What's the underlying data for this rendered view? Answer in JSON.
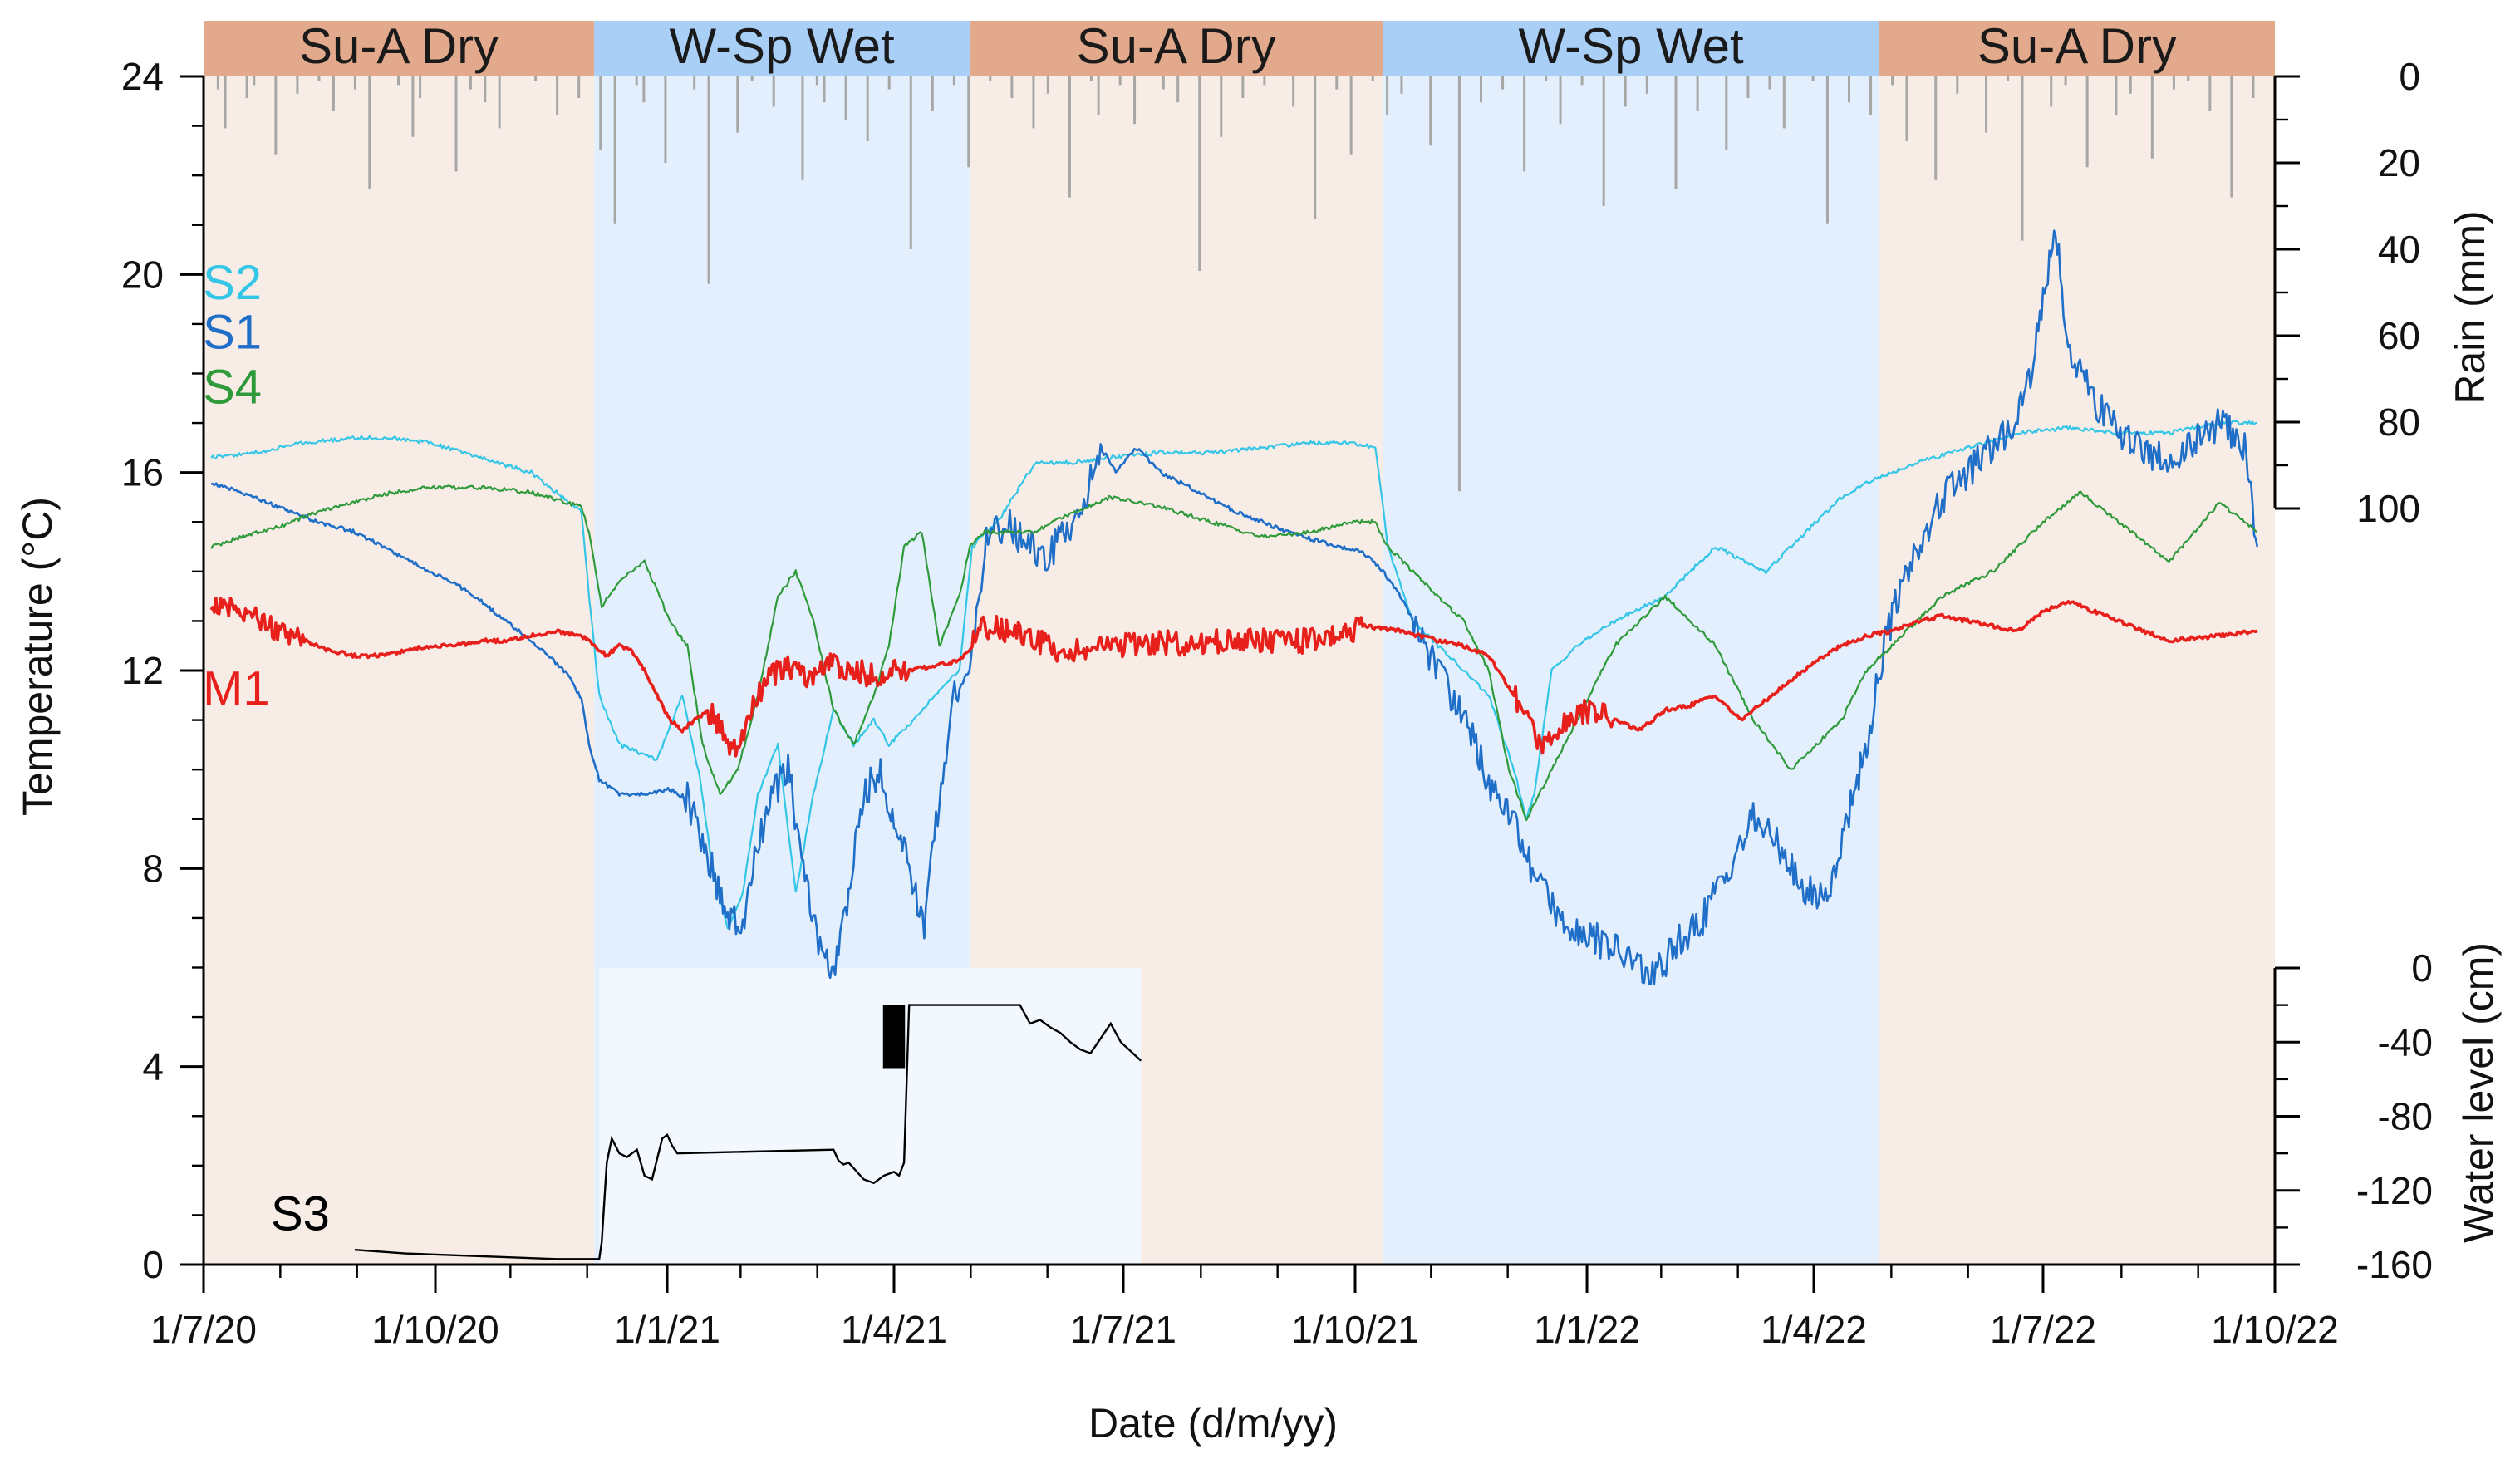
{
  "chart_data": {
    "type": "line",
    "xlabel": "Date (d/m/yy)",
    "ylabel": "Temperature (°C)",
    "ylim": [
      0,
      24
    ],
    "yticks": [
      0,
      4,
      8,
      12,
      16,
      20,
      24
    ],
    "x_range": [
      "1/7/20",
      "1/10/22"
    ],
    "x_ticks": [
      "1/7/20",
      "1/10/20",
      "1/1/21",
      "1/4/21",
      "1/7/21",
      "1/10/21",
      "1/1/22",
      "1/4/22",
      "1/7/22",
      "1/10/22"
    ],
    "x_tick_days": [
      0,
      92,
      184,
      274,
      365,
      457,
      549,
      639,
      730,
      822
    ],
    "rain_axis": {
      "label": "Rain (mm)",
      "ticks": [
        0,
        20,
        40,
        60,
        80,
        100
      ],
      "range": [
        0,
        100
      ]
    },
    "water_axis": {
      "label": "Water level (cm)",
      "ticks": [
        0,
        -40,
        -80,
        -120,
        -160
      ],
      "range": [
        -160,
        0
      ]
    },
    "seasons": [
      {
        "label": "Su-A Dry",
        "start": 0,
        "end": 155,
        "kind": "dry"
      },
      {
        "label": "W-Sp Wet",
        "start": 155,
        "end": 304,
        "kind": "wet"
      },
      {
        "label": "Su-A Dry",
        "start": 304,
        "end": 468,
        "kind": "dry"
      },
      {
        "label": "W-Sp Wet",
        "start": 468,
        "end": 665,
        "kind": "wet"
      },
      {
        "label": "Su-A Dry",
        "start": 665,
        "end": 822,
        "kind": "dry"
      }
    ],
    "series": [
      {
        "name": "S2",
        "color": "#33c6e6",
        "width": 2.2,
        "x": [
          3,
          20,
          40,
          60,
          75,
          90,
          110,
          130,
          150,
          153,
          157,
          165,
          180,
          190,
          197,
          202,
          208,
          214,
          220,
          228,
          235,
          242,
          250,
          258,
          266,
          272,
          278,
          285,
          292,
          300,
          305,
          315,
          330,
          345,
          360,
          380,
          400,
          420,
          440,
          455,
          465,
          470,
          480,
          490,
          500,
          510,
          520,
          525,
          528,
          535,
          545,
          560,
          580,
          600,
          620,
          630,
          640,
          650,
          660,
          680,
          700,
          720,
          740,
          760,
          780,
          800,
          815
        ],
        "y": [
          16.3,
          16.4,
          16.6,
          16.7,
          16.7,
          16.6,
          16.3,
          16.0,
          15.2,
          13.5,
          11.5,
          10.5,
          10.2,
          11.5,
          9.8,
          8.0,
          6.8,
          7.5,
          9.5,
          10.5,
          7.5,
          9.5,
          11.2,
          10.5,
          11.0,
          10.5,
          10.8,
          11.2,
          11.6,
          12.0,
          14.5,
          15.0,
          16.2,
          16.2,
          16.3,
          16.4,
          16.4,
          16.5,
          16.6,
          16.6,
          16.5,
          14.5,
          13.0,
          12.5,
          12.0,
          11.5,
          10.0,
          9.0,
          9.5,
          12.0,
          12.5,
          13.0,
          13.5,
          14.5,
          14.0,
          14.5,
          15.0,
          15.5,
          15.8,
          16.2,
          16.5,
          16.8,
          16.9,
          16.8,
          16.8,
          17.0,
          17.0
        ]
      },
      {
        "name": "S1",
        "color": "#1f6ec8",
        "width": 2.6,
        "x": [
          3,
          15,
          30,
          45,
          60,
          75,
          90,
          105,
          120,
          135,
          145,
          150,
          153,
          157,
          165,
          175,
          185,
          192,
          198,
          203,
          208,
          214,
          220,
          226,
          232,
          238,
          244,
          250,
          256,
          262,
          268,
          274,
          280,
          286,
          292,
          298,
          304,
          310,
          318,
          326,
          334,
          342,
          350,
          356,
          362,
          370,
          380,
          395,
          410,
          430,
          450,
          460,
          468,
          475,
          485,
          495,
          505,
          512,
          520,
          528,
          536,
          545,
          555,
          565,
          575,
          585,
          595,
          605,
          615,
          625,
          635,
          645,
          655,
          660,
          665,
          672,
          680,
          690,
          700,
          710,
          718,
          725,
          730,
          735,
          740,
          750,
          760,
          770,
          780,
          790,
          800,
          810,
          815
        ],
        "y": [
          15.8,
          15.6,
          15.3,
          15.0,
          14.8,
          14.4,
          14.0,
          13.6,
          13.0,
          12.4,
          11.9,
          11.4,
          10.5,
          9.8,
          9.5,
          9.5,
          9.6,
          9.4,
          8.6,
          7.8,
          7.0,
          6.8,
          8.5,
          9.5,
          10.0,
          8.0,
          6.5,
          5.8,
          7.5,
          9.5,
          10.0,
          9.0,
          8.0,
          6.8,
          9.5,
          11.5,
          12.0,
          14.5,
          15.0,
          14.6,
          14.2,
          14.8,
          15.5,
          16.5,
          16.0,
          16.5,
          16.0,
          15.6,
          15.2,
          14.8,
          14.5,
          14.4,
          14.0,
          13.5,
          12.5,
          11.5,
          10.5,
          9.5,
          9.0,
          7.8,
          7.2,
          6.8,
          6.5,
          6.2,
          5.8,
          6.5,
          7.0,
          8.0,
          9.0,
          8.5,
          7.5,
          7.5,
          9.5,
          10.5,
          12.0,
          13.5,
          14.5,
          15.5,
          16.0,
          16.5,
          17.0,
          18.0,
          19.5,
          21.0,
          18.5,
          17.5,
          16.8,
          16.5,
          16.2,
          16.6,
          17.0,
          16.5,
          14.5
        ]
      },
      {
        "name": "S4",
        "color": "#2e9a3a",
        "width": 2.2,
        "x": [
          3,
          15,
          30,
          45,
          60,
          75,
          90,
          110,
          130,
          150,
          153,
          158,
          165,
          175,
          185,
          192,
          198,
          205,
          212,
          220,
          228,
          235,
          242,
          250,
          258,
          266,
          272,
          278,
          285,
          292,
          300,
          304,
          310,
          320,
          330,
          345,
          360,
          380,
          400,
          420,
          440,
          455,
          465,
          470,
          480,
          490,
          500,
          510,
          518,
          525,
          535,
          545,
          560,
          580,
          600,
          615,
          630,
          640,
          650,
          660,
          670,
          690,
          710,
          730,
          745,
          760,
          780,
          800,
          815
        ],
        "y": [
          14.5,
          14.7,
          14.9,
          15.2,
          15.4,
          15.6,
          15.7,
          15.7,
          15.6,
          15.3,
          14.8,
          13.3,
          13.8,
          14.2,
          13.0,
          12.5,
          10.5,
          9.5,
          10.0,
          11.5,
          13.5,
          14.0,
          13.0,
          11.2,
          10.5,
          11.5,
          12.5,
          14.5,
          14.8,
          12.5,
          13.5,
          14.5,
          14.8,
          14.8,
          14.8,
          15.2,
          15.5,
          15.3,
          15.0,
          14.7,
          14.8,
          15.0,
          15.0,
          14.5,
          14.0,
          13.5,
          13.0,
          12.0,
          10.0,
          9.0,
          10.0,
          11.0,
          12.5,
          13.5,
          12.5,
          11.0,
          10.0,
          10.5,
          11.0,
          12.0,
          12.5,
          13.5,
          14.0,
          15.0,
          15.6,
          15.0,
          14.2,
          15.4,
          14.8
        ]
      },
      {
        "name": "M1",
        "color": "#e8201c",
        "width": 3.6,
        "x": [
          3,
          10,
          20,
          30,
          40,
          50,
          60,
          70,
          80,
          90,
          100,
          110,
          120,
          130,
          140,
          150,
          155,
          160,
          165,
          170,
          175,
          180,
          185,
          190,
          195,
          200,
          205,
          210,
          215,
          220,
          225,
          230,
          235,
          240,
          245,
          250,
          255,
          260,
          265,
          270,
          275,
          280,
          290,
          300,
          305,
          310,
          320,
          330,
          340,
          350,
          360,
          370,
          380,
          390,
          400,
          410,
          420,
          430,
          440,
          450,
          455,
          460,
          475,
          490,
          500,
          510,
          520,
          530,
          540,
          550,
          560,
          570,
          580,
          590,
          600,
          610,
          620,
          630,
          640,
          650,
          660,
          670,
          680,
          690,
          700,
          710,
          720,
          730,
          740,
          760,
          780,
          800,
          815
        ],
        "y": [
          13.4,
          13.3,
          13.1,
          12.8,
          12.6,
          12.4,
          12.3,
          12.3,
          12.4,
          12.5,
          12.5,
          12.6,
          12.6,
          12.7,
          12.8,
          12.7,
          12.5,
          12.3,
          12.5,
          12.4,
          12.0,
          11.5,
          11.0,
          10.8,
          11.0,
          11.2,
          10.9,
          10.3,
          10.8,
          11.5,
          11.9,
          12.0,
          12.1,
          11.8,
          12.0,
          12.2,
          11.9,
          12.0,
          11.9,
          11.9,
          12.0,
          12.0,
          12.1,
          12.2,
          12.5,
          12.9,
          12.8,
          12.6,
          12.4,
          12.4,
          12.5,
          12.5,
          12.6,
          12.5,
          12.6,
          12.6,
          12.6,
          12.6,
          12.6,
          12.7,
          12.8,
          12.9,
          12.8,
          12.6,
          12.5,
          12.3,
          11.5,
          10.5,
          11.0,
          11.2,
          11.0,
          10.8,
          11.2,
          11.3,
          11.5,
          11.0,
          11.4,
          11.8,
          12.2,
          12.5,
          12.7,
          12.8,
          13.0,
          13.1,
          13.0,
          12.9,
          12.8,
          13.2,
          13.4,
          13.0,
          12.6,
          12.7,
          12.8
        ]
      }
    ],
    "water_level": {
      "name": "S3",
      "color": "#000000",
      "x": [
        60,
        80,
        100,
        120,
        140,
        150,
        157,
        158,
        160,
        162,
        165,
        168,
        172,
        175,
        178,
        180,
        182,
        184,
        186,
        188,
        250,
        252,
        254,
        256,
        258,
        262,
        266,
        270,
        274,
        276,
        278,
        280,
        284,
        288,
        292,
        296,
        300,
        304,
        308,
        312,
        316,
        320,
        324,
        328,
        332,
        336,
        340,
        344,
        348,
        352,
        356,
        360,
        364,
        368,
        372
      ],
      "y": [
        -152,
        -154,
        -155,
        -156,
        -157,
        -157,
        -157,
        -148,
        -105,
        -92,
        -100,
        -102,
        -98,
        -112,
        -114,
        -103,
        -92,
        -90,
        -96,
        -100,
        -98,
        -104,
        -106,
        -105,
        -108,
        -114,
        -116,
        -112,
        -110,
        -112,
        -105,
        -20,
        -20,
        -20,
        -20,
        -20,
        -20,
        -20,
        -20,
        -20,
        -20,
        -20,
        -20,
        -30,
        -28,
        -32,
        -35,
        -40,
        -44,
        -46,
        -38,
        -30,
        -40,
        -45,
        -50
      ]
    },
    "rain_daily_mm": [
      10,
      0,
      3,
      12,
      0,
      0,
      5,
      2,
      0,
      0,
      18,
      0,
      0,
      4,
      0,
      0,
      1,
      0,
      8,
      0,
      0,
      3,
      0,
      26,
      0,
      0,
      0,
      2,
      0,
      14,
      5,
      0,
      0,
      0,
      0,
      22,
      0,
      3,
      0,
      6,
      0,
      12,
      0,
      0,
      0,
      0,
      1,
      0,
      0,
      9,
      0,
      0,
      5,
      0,
      0,
      17,
      0,
      34,
      0,
      0,
      2,
      6,
      0,
      0,
      20,
      0,
      0,
      0,
      3,
      0,
      48,
      0,
      0,
      0,
      13,
      0,
      1,
      0,
      0,
      7,
      0,
      0,
      0,
      24,
      0,
      2,
      6,
      0,
      0,
      10,
      0,
      0,
      15,
      0,
      0,
      3,
      0,
      0,
      40,
      0,
      0,
      8,
      0,
      0,
      2,
      0,
      21,
      0,
      0,
      1,
      0,
      0,
      5,
      0,
      0,
      12,
      0,
      4,
      0,
      0,
      28,
      0,
      0,
      1,
      9,
      0,
      0,
      2,
      0,
      11,
      0,
      0,
      0,
      3,
      0,
      6,
      0,
      0,
      45,
      0,
      0,
      14,
      0,
      0,
      5,
      0,
      0,
      2,
      0,
      0,
      0,
      7,
      0,
      0,
      33,
      0,
      0,
      3,
      0,
      18,
      0,
      0,
      1,
      0,
      9,
      0,
      4,
      0,
      0,
      0,
      16,
      0,
      0,
      0,
      96,
      0,
      0,
      6,
      0,
      0,
      3,
      0,
      0,
      22,
      0,
      0,
      1,
      0,
      11,
      0,
      0,
      2,
      0,
      0,
      30,
      0,
      0,
      7,
      0,
      0,
      4,
      0,
      0,
      0,
      26,
      0,
      0,
      8,
      0,
      0,
      0,
      17,
      0,
      0,
      5,
      0,
      0,
      3,
      0,
      12,
      0,
      0,
      0,
      1,
      0,
      34,
      0,
      0,
      6,
      0,
      0,
      9,
      0,
      0,
      2,
      0,
      15,
      0,
      0,
      0,
      24,
      0,
      0,
      4,
      0,
      0,
      0,
      13,
      0,
      0,
      1,
      0,
      38,
      0,
      0,
      0,
      7,
      0,
      2,
      0,
      0,
      21,
      0,
      0,
      0,
      9,
      0,
      4,
      0,
      0,
      19,
      0,
      0,
      3,
      0,
      1,
      0,
      0,
      8,
      0,
      0,
      28,
      0,
      0,
      5,
      0,
      0
    ],
    "labels": [
      {
        "name": "S2",
        "color": "#33c6e6",
        "at_day": 3,
        "at_temp": 19.5
      },
      {
        "name": "S1",
        "color": "#1f6ec8",
        "at_day": 3,
        "at_temp": 18.5
      },
      {
        "name": "S4",
        "color": "#2e9a3a",
        "at_day": 3,
        "at_temp": 17.4
      },
      {
        "name": "M1",
        "color": "#e8201c",
        "at_day": 3,
        "at_temp": 11.3
      },
      {
        "name": "S3",
        "color": "#000000",
        "at_day": 30,
        "at_temp": 0.7
      }
    ]
  }
}
